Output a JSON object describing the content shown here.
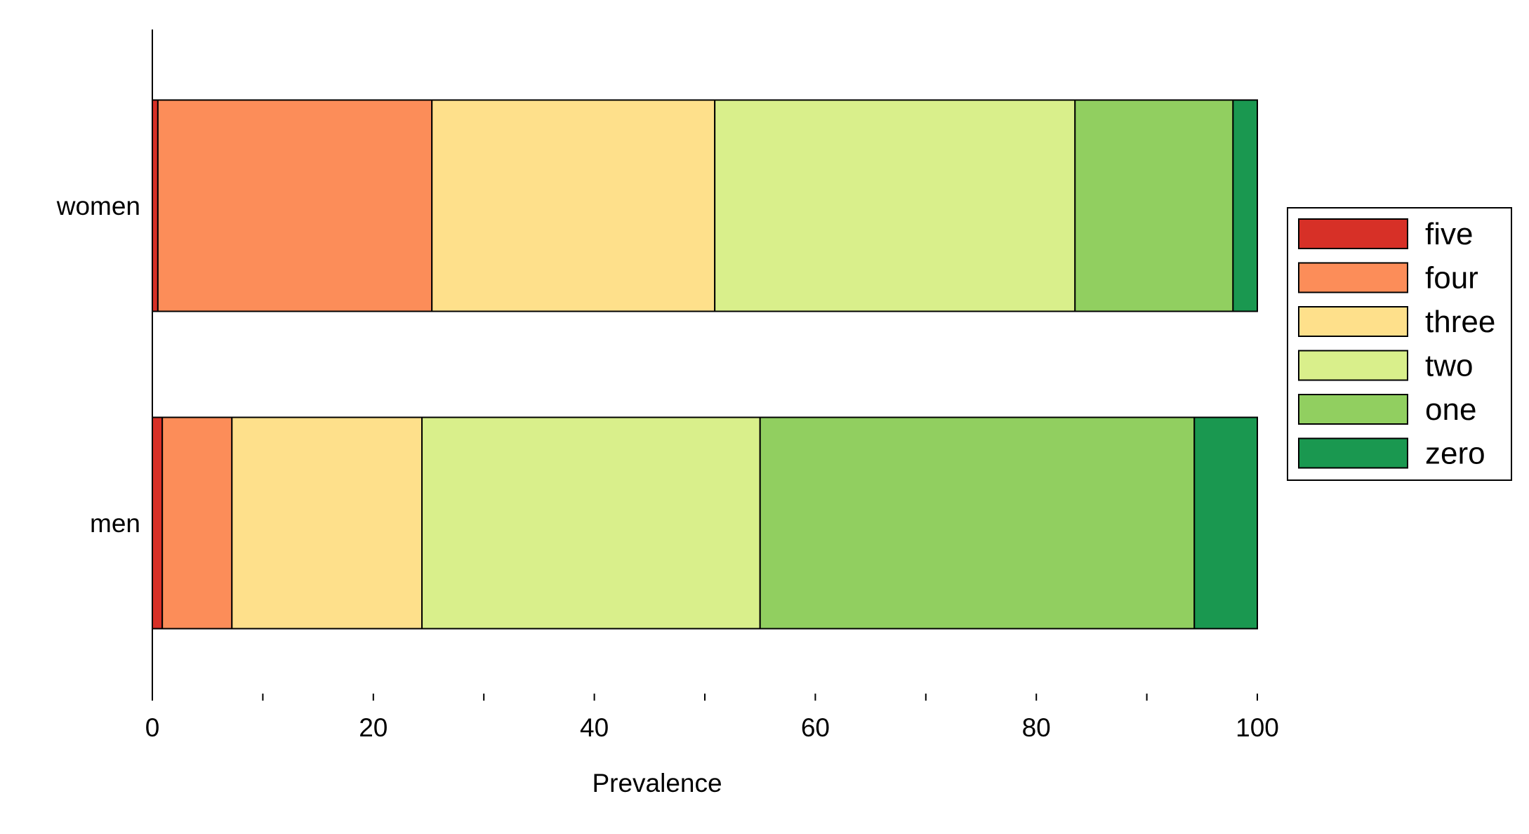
{
  "chart_data": {
    "type": "bar",
    "orientation": "horizontal",
    "stacked": true,
    "categories": [
      "women",
      "men"
    ],
    "series": [
      {
        "name": "five",
        "color": "#d73027",
        "values": [
          0.5,
          0.9
        ]
      },
      {
        "name": "four",
        "color": "#fc8d59",
        "values": [
          24.8,
          6.3
        ]
      },
      {
        "name": "three",
        "color": "#fee08b",
        "values": [
          25.6,
          17.2
        ]
      },
      {
        "name": "two",
        "color": "#d9ef8b",
        "values": [
          32.6,
          30.6
        ]
      },
      {
        "name": "one",
        "color": "#91cf60",
        "values": [
          14.3,
          39.3
        ]
      },
      {
        "name": "zero",
        "color": "#1a9850",
        "values": [
          2.2,
          5.7
        ]
      }
    ],
    "xlabel": "Prevalence",
    "ylabel": "",
    "xlim": [
      0,
      100
    ],
    "xticks": [
      "0",
      "20",
      "40",
      "60",
      "80",
      "100"
    ],
    "legend_position": "right",
    "grid": false
  }
}
